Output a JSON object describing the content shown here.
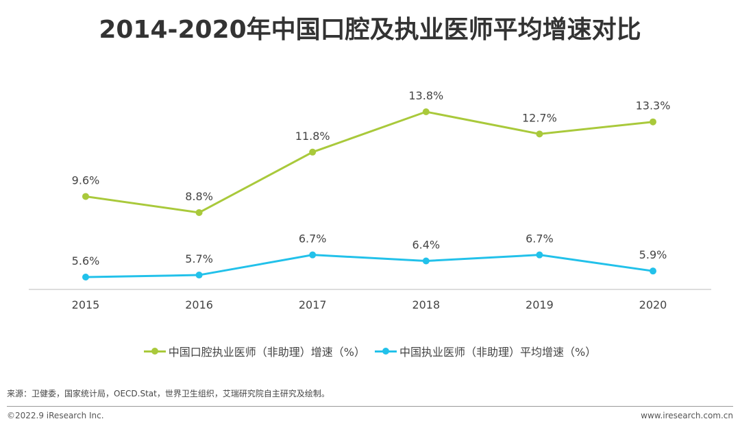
{
  "title": "2014-2020年中国口腔及执业医师平均增速对比",
  "chart_data": {
    "type": "line",
    "title": "2014-2020年中国口腔及执业医师平均增速对比",
    "categories": [
      "2015",
      "2016",
      "2017",
      "2018",
      "2019",
      "2020"
    ],
    "series": [
      {
        "name": "中国口腔执业医师（非助理）增速（%）",
        "color": "#a9c93b",
        "values": [
          9.6,
          8.8,
          11.8,
          13.8,
          12.7,
          13.3
        ],
        "labels": [
          "9.6%",
          "8.8%",
          "11.8%",
          "13.8%",
          "12.7%",
          "13.3%"
        ]
      },
      {
        "name": "中国执业医师（非助理）平均增速（%）",
        "color": "#22c1ea",
        "values": [
          5.6,
          5.7,
          6.7,
          6.4,
          6.7,
          5.9
        ],
        "labels": [
          "5.6%",
          "5.7%",
          "6.7%",
          "6.4%",
          "6.7%",
          "5.9%"
        ]
      }
    ],
    "grid": false,
    "legend_position": "bottom"
  },
  "footer": {
    "source": "来源：卫健委，国家统计局，OECD.Stat，世界卫生组织，艾瑞研究院自主研究及绘制。",
    "copyright": "©2022.9 iResearch Inc.",
    "website": "www.iresearch.com.cn"
  }
}
